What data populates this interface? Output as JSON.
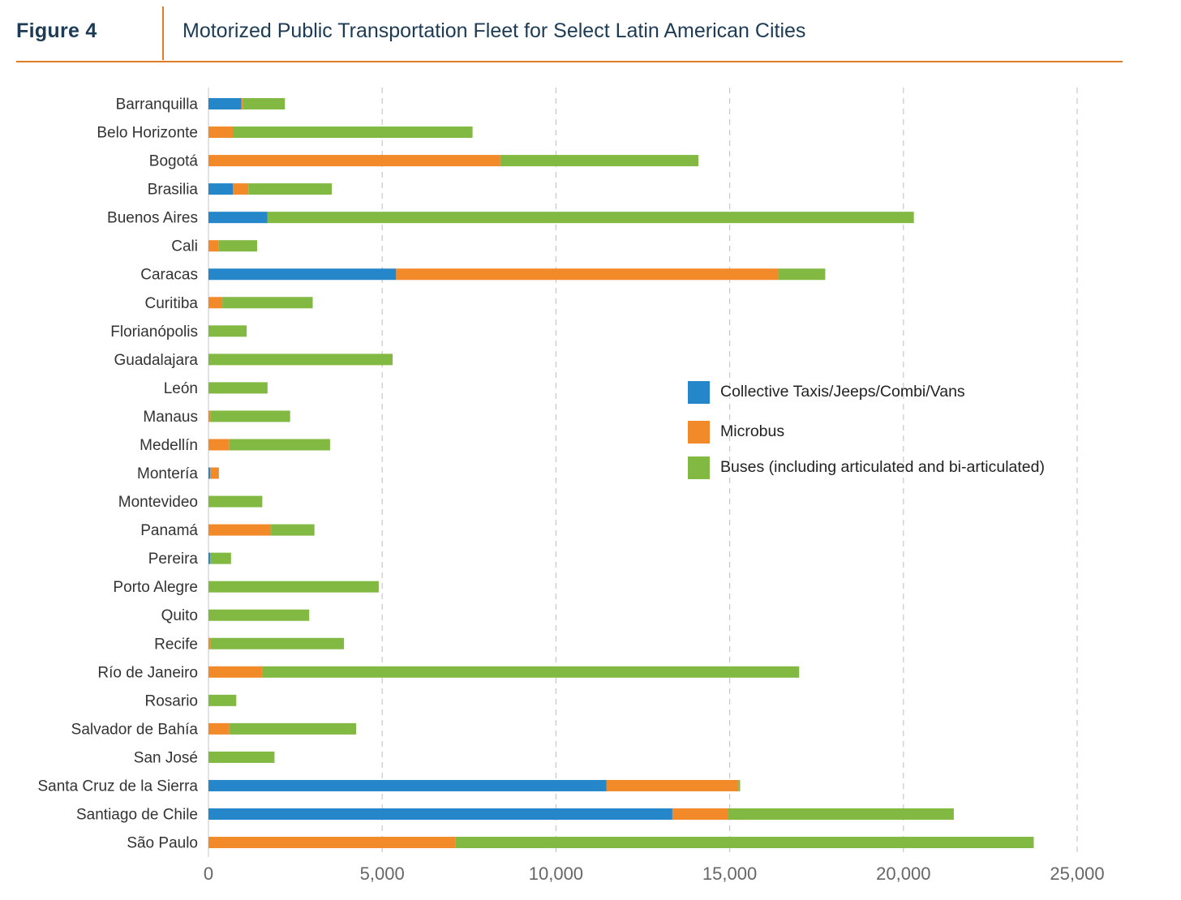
{
  "header": {
    "figure_label": "Figure 4",
    "title": "Motorized Public Transportation Fleet for Select Latin American Cities"
  },
  "colors": {
    "accent": "#e07b26",
    "title_text": "#1d3b55",
    "series": [
      "#2586c9",
      "#f28a2a",
      "#82b942"
    ]
  },
  "chart_data": {
    "type": "bar",
    "orientation": "horizontal",
    "stacked": true,
    "title": "Motorized Public Transportation Fleet for Select Latin American Cities",
    "categories": [
      "Barranquilla",
      "Belo Horizonte",
      "Bogotá",
      "Brasilia",
      "Buenos Aires",
      "Cali",
      "Caracas",
      "Curitiba",
      "Florianópolis",
      "Guadalajara",
      "León",
      "Manaus",
      "Medellín",
      "Montería",
      "Montevideo",
      "Panamá",
      "Pereira",
      "Porto Alegre",
      "Quito",
      "Recife",
      "Río de Janeiro",
      "Rosario",
      "Salvador de Bahía",
      "San José",
      "Santa Cruz de la Sierra",
      "Santiago de Chile",
      "São Paulo"
    ],
    "series": [
      {
        "name": "Collective Taxis/Jeeps/Combi/Vans",
        "values": [
          950,
          0,
          0,
          700,
          1700,
          0,
          5400,
          0,
          0,
          0,
          0,
          0,
          0,
          50,
          0,
          0,
          50,
          0,
          0,
          0,
          0,
          0,
          0,
          0,
          11450,
          13350,
          0
        ]
      },
      {
        "name": "Microbus",
        "values": [
          50,
          700,
          8400,
          450,
          0,
          300,
          11000,
          400,
          0,
          0,
          0,
          50,
          600,
          250,
          0,
          1800,
          0,
          0,
          0,
          50,
          1550,
          0,
          600,
          0,
          3800,
          1600,
          7100
        ]
      },
      {
        "name": "Buses (including articulated and bi-articulated)",
        "values": [
          1200,
          6900,
          5700,
          2400,
          18600,
          1100,
          1350,
          2600,
          1100,
          5300,
          1700,
          2300,
          2900,
          0,
          1550,
          1250,
          600,
          4900,
          2900,
          3850,
          15450,
          800,
          3650,
          1900,
          50,
          6500,
          16650
        ]
      }
    ],
    "x_ticks": [
      "0",
      "5,000",
      "10,000",
      "15,000",
      "20,000",
      "25,000"
    ],
    "xlim": [
      0,
      25000
    ],
    "grid": "vertical dashed",
    "legend_position": "right-middle"
  }
}
